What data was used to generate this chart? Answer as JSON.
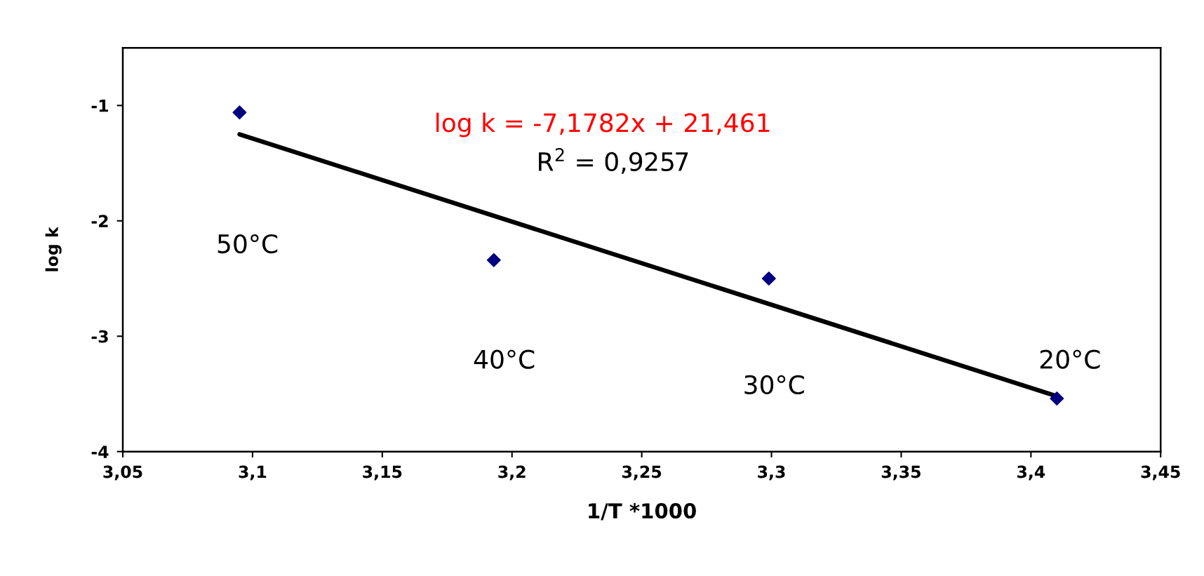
{
  "chart_data": {
    "type": "scatter",
    "xlabel": "1/T *1000",
    "ylabel": "log k",
    "xlim": [
      3.05,
      3.45
    ],
    "ylim": [
      -4,
      -0.5
    ],
    "xticks": [
      {
        "value": 3.05,
        "label": "3,05"
      },
      {
        "value": 3.1,
        "label": "3,1"
      },
      {
        "value": 3.15,
        "label": "3,15"
      },
      {
        "value": 3.2,
        "label": "3,2"
      },
      {
        "value": 3.25,
        "label": "3,25"
      },
      {
        "value": 3.3,
        "label": "3,3"
      },
      {
        "value": 3.35,
        "label": "3,35"
      },
      {
        "value": 3.4,
        "label": "3,4"
      },
      {
        "value": 3.45,
        "label": "3,45"
      }
    ],
    "yticks": [
      -4,
      -3,
      -2,
      -1
    ],
    "grid": false,
    "marker": "diamond",
    "series": [
      {
        "color": "#000080",
        "x": [
          3.095,
          3.193,
          3.299,
          3.41
        ],
        "values": [
          -1.06,
          -2.34,
          -2.5,
          -3.54
        ]
      },
      {
        "type": "line",
        "color": "#000000",
        "line_style": "solid",
        "marker": "none",
        "x": [
          3.095,
          3.41
        ],
        "values": [
          -1.25,
          -3.52
        ]
      }
    ],
    "annotations": [
      "log k = -7,1782x + 21,461",
      "R$^{2}$ = 0,9257",
      "50°C",
      "40°C",
      "30°C",
      "20°C"
    ]
  }
}
